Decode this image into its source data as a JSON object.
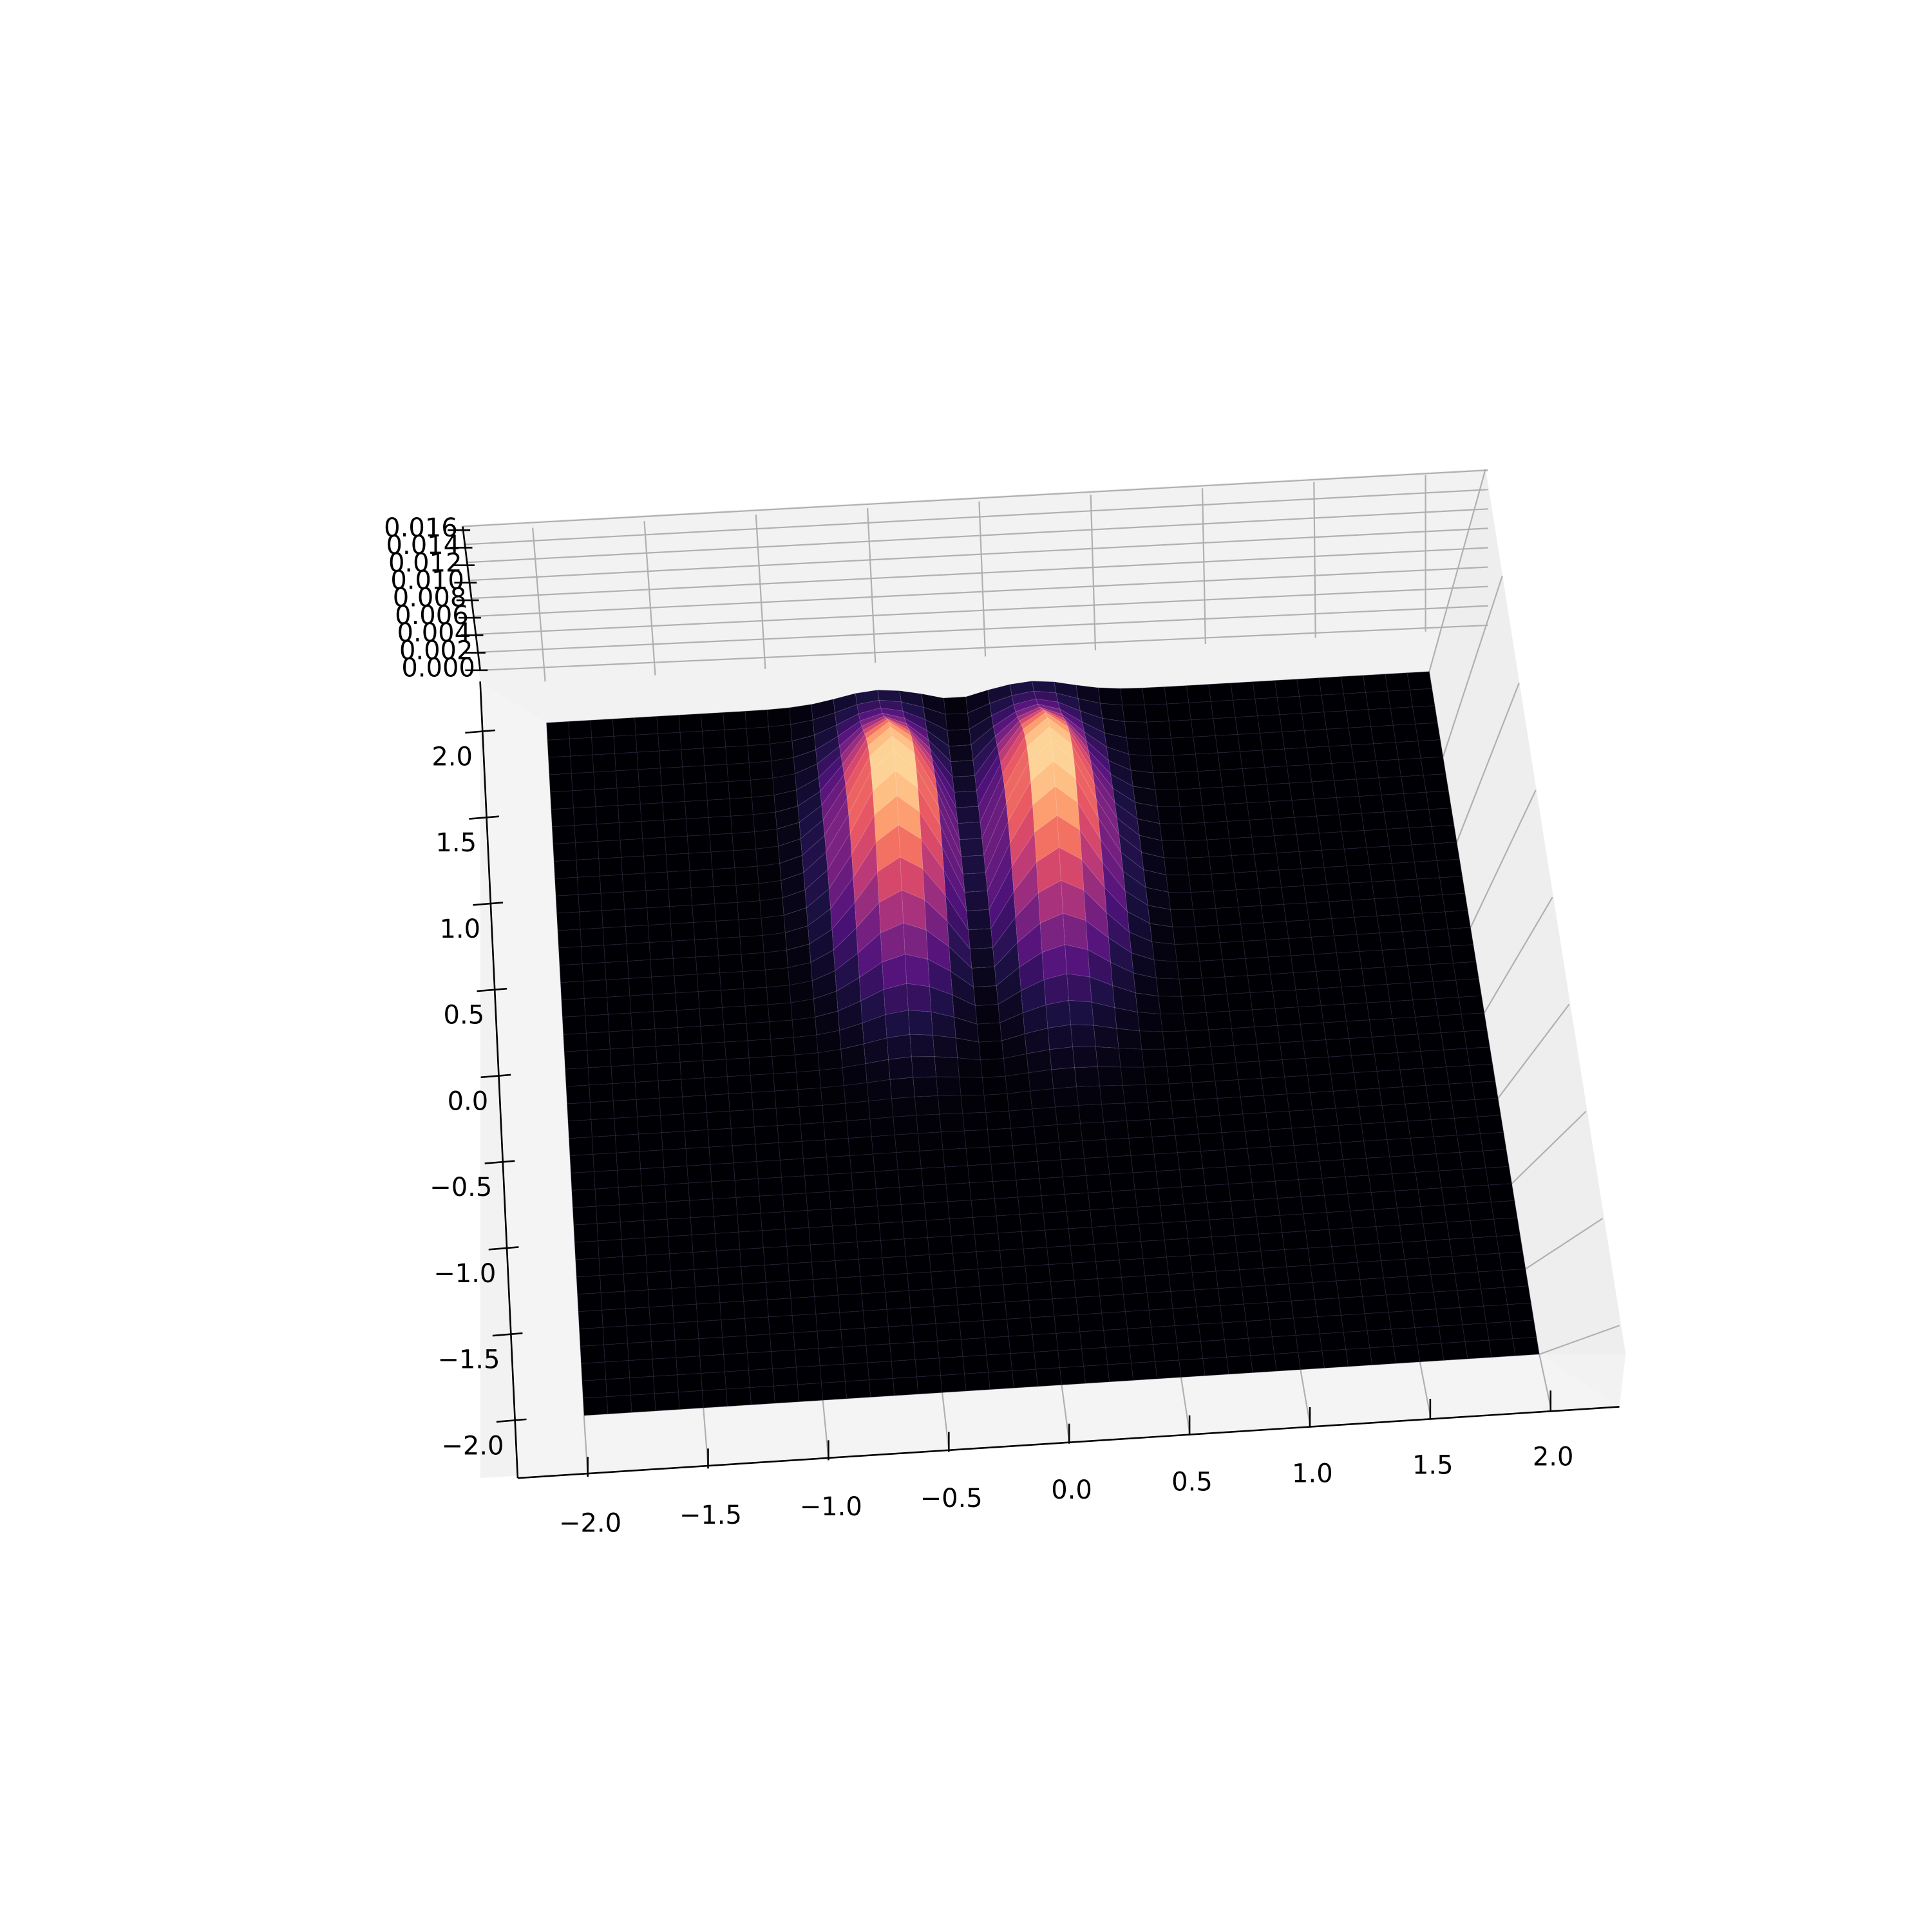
{
  "chart_data": {
    "type": "surface3d",
    "title": "",
    "xlabel": "",
    "ylabel": "",
    "zlabel": "",
    "colormap": "magma",
    "grid": true,
    "xlim": [
      -2.0,
      2.0
    ],
    "ylim": [
      -2.0,
      2.0
    ],
    "zlim": [
      0.0,
      0.016
    ],
    "x_ticks": [
      "−2.0",
      "−1.5",
      "−1.0",
      "−0.5",
      "0.0",
      "0.5",
      "1.0",
      "1.5",
      "2.0"
    ],
    "y_ticks": [
      "−2.0",
      "−1.5",
      "−1.0",
      "−0.5",
      "0.0",
      "0.5",
      "1.0",
      "1.5",
      "2.0"
    ],
    "z_ticks": [
      "0.000",
      "0.002",
      "0.004",
      "0.006",
      "0.008",
      "0.010",
      "0.012",
      "0.014",
      "0.016"
    ],
    "surface": {
      "description_function": "two gaussian lobes separated along x by a zero line at x=0",
      "peaks": [
        {
          "x": -0.5,
          "y": 1.0,
          "z": 0.016
        },
        {
          "x": 0.2,
          "y": 1.0,
          "z": 0.016
        }
      ]
    }
  }
}
